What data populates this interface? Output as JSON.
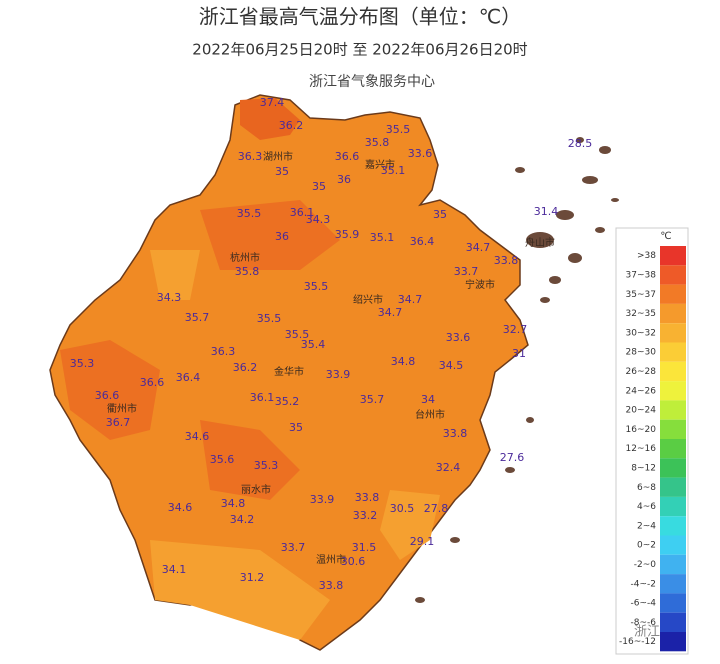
{
  "header": {
    "title": "浙江省最高气温分布图（单位：℃）",
    "subtitle": "2022年06月25日20时   至   2022年06月26日20时",
    "source": "浙江省气象服务中心"
  },
  "stations": [
    37.4,
    36.2,
    35.5,
    36.3,
    35.8,
    33.6,
    35,
    36.6,
    35.1,
    36,
    35,
    28.5,
    35.5,
    36.1,
    34.3,
    35,
    31.4,
    36,
    35.9,
    35.1,
    36.4,
    34.7,
    33.8,
    35.8,
    33.7,
    34.3,
    35.5,
    34.7,
    34.7,
    35.7,
    35.5,
    32.7,
    33.6,
    35.5,
    35.4,
    31,
    35.3,
    36.3,
    36.2,
    34.8,
    34.5,
    36.6,
    36.4,
    33.9,
    36.6,
    36.1,
    35.2,
    35.7,
    34,
    36.7,
    35,
    33.8,
    34.6,
    27.6,
    35.6,
    35.3,
    32.4,
    33.9,
    33.8,
    34.6,
    34.8,
    30.5,
    27.8,
    34.2,
    33.2,
    29.1,
    33.7,
    31.5,
    30.6,
    34.1,
    31.2,
    33.8
  ],
  "cities": [
    "湖州市",
    "嘉兴市",
    "杭州市",
    "舟山市",
    "宁波市",
    "绍兴市",
    "金华市",
    "衢州市",
    "台州市",
    "丽水市",
    "温州市"
  ],
  "legend": {
    "unit": "℃",
    "items": [
      {
        "label": ">38",
        "color": "#e8352a"
      },
      {
        "label": "37~38",
        "color": "#ee5a28"
      },
      {
        "label": "35~37",
        "color": "#f27a26"
      },
      {
        "label": "32~35",
        "color": "#f59a2c"
      },
      {
        "label": "30~32",
        "color": "#f8b232"
      },
      {
        "label": "28~30",
        "color": "#fbcd36"
      },
      {
        "label": "26~28",
        "color": "#fbe53a"
      },
      {
        "label": "24~26",
        "color": "#eef23c"
      },
      {
        "label": "20~24",
        "color": "#bfee3a"
      },
      {
        "label": "16~20",
        "color": "#86de3c"
      },
      {
        "label": "12~16",
        "color": "#5acd44"
      },
      {
        "label": "8~12",
        "color": "#3cc258"
      },
      {
        "label": "6~8",
        "color": "#35c48a"
      },
      {
        "label": "4~6",
        "color": "#33d0b6"
      },
      {
        "label": "2~4",
        "color": "#38dbe0"
      },
      {
        "label": "0~2",
        "color": "#3ecff2"
      },
      {
        "label": "-2~0",
        "color": "#40b2f0"
      },
      {
        "label": "-4~-2",
        "color": "#3a8ee6"
      },
      {
        "label": "-6~-4",
        "color": "#2f6cd8"
      },
      {
        "label": "-8~-6",
        "color": "#2648c6"
      },
      {
        "label": "-16~-12",
        "color": "#1b22a8"
      }
    ]
  },
  "watermark": "浙江天气"
}
